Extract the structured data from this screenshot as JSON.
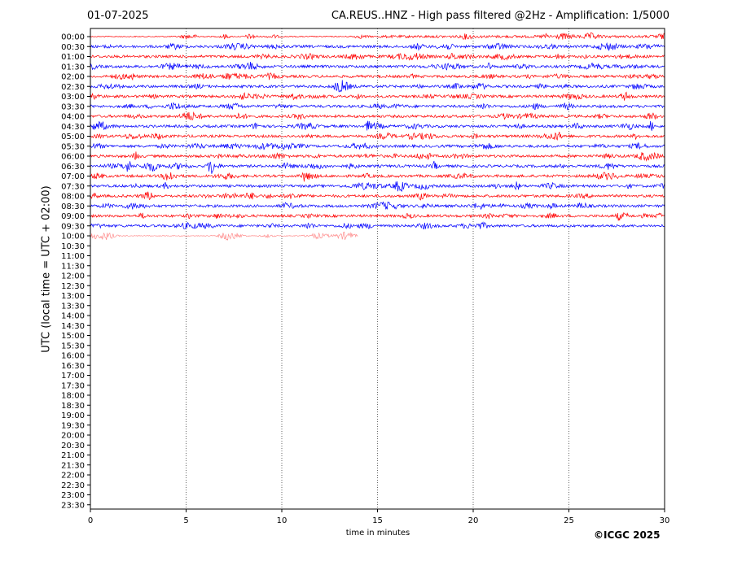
{
  "header": {
    "date": "01-07-2025",
    "title": "CA.REUS..HNZ - High pass filtered @2Hz - Amplification: 1/5000"
  },
  "footer": {
    "copyright": "©ICGC 2025"
  },
  "colors": {
    "trace_a": "#ff0000",
    "trace_b": "#0000ff",
    "axis": "#000000",
    "grid": "#000000"
  },
  "chart_data": {
    "type": "line",
    "chart_kind": "helicorder seismogram",
    "xlabel": "time in minutes",
    "ylabel": "UTC (local time = UTC + 02:00)",
    "xlim": [
      0,
      30
    ],
    "xticks": [
      0,
      5,
      10,
      15,
      20,
      25,
      30
    ],
    "vertical_grid": "dotted at every x tick",
    "row_labels": [
      "00:00",
      "00:30",
      "01:00",
      "01:30",
      "02:00",
      "02:30",
      "03:00",
      "03:30",
      "04:00",
      "04:30",
      "05:00",
      "05:30",
      "06:00",
      "06:30",
      "07:00",
      "07:30",
      "08:00",
      "08:30",
      "09:00",
      "09:30",
      "10:00",
      "10:30",
      "11:00",
      "11:30",
      "12:00",
      "12:30",
      "13:00",
      "13:30",
      "14:00",
      "14:30",
      "15:00",
      "15:30",
      "16:00",
      "16:30",
      "17:00",
      "17:30",
      "18:00",
      "18:30",
      "19:00",
      "19:30",
      "20:00",
      "20:30",
      "21:00",
      "21:30",
      "22:00",
      "22:30",
      "23:00",
      "23:30"
    ],
    "trace_colors_alternate": [
      "red",
      "blue"
    ],
    "recorded_rows": 21,
    "last_row_end_minute": 14,
    "events": [
      {
        "row": "06:30",
        "minute": 6.3,
        "relative_amplitude": 1.0
      },
      {
        "row": "06:30",
        "minute": 2.0,
        "relative_amplitude": 0.5
      },
      {
        "row": "06:00",
        "minute": 2.4,
        "relative_amplitude": 0.6
      },
      {
        "row": "07:00",
        "minute": 11.2,
        "relative_amplitude": 0.5
      },
      {
        "row": "04:30",
        "minute": 14.5,
        "relative_amplitude": 0.45
      },
      {
        "row": "04:30",
        "minute": 29.3,
        "relative_amplitude": 0.5
      },
      {
        "row": "06:30",
        "minute": 18.0,
        "relative_amplitude": 0.5
      },
      {
        "row": "02:00",
        "minute": 7.1,
        "relative_amplitude": 0.4
      },
      {
        "row": "01:30",
        "minute": 20.8,
        "relative_amplitude": 0.4
      },
      {
        "row": "09:00",
        "minute": 27.6,
        "relative_amplitude": 0.4
      },
      {
        "row": "08:00",
        "minute": 7.5,
        "relative_amplitude": 0.35
      },
      {
        "row": "03:00",
        "minute": 14.0,
        "relative_amplitude": 0.35
      },
      {
        "row": "00:30",
        "minute": 0.9,
        "relative_amplitude": 0.35
      },
      {
        "row": "07:30",
        "minute": 22.3,
        "relative_amplitude": 0.35
      }
    ]
  }
}
